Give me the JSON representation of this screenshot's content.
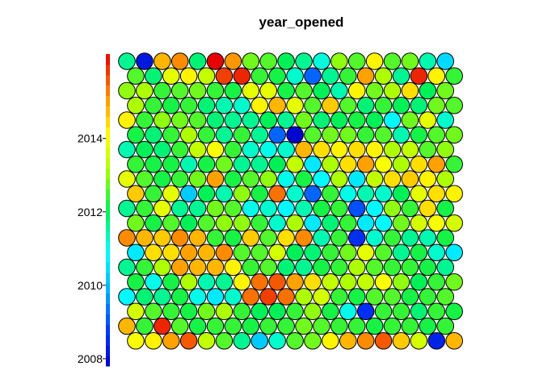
{
  "chart_data": {
    "type": "heatmap",
    "title": "year_opened",
    "grid": false,
    "legend": "colorbar-left",
    "colorbar": {
      "min": 2007.8,
      "max": 2016.3,
      "ticks": [
        2008,
        2010,
        2012,
        2014
      ],
      "tick_labels": [
        "2008",
        "2010",
        "2012",
        "2014"
      ]
    },
    "hex_grid": {
      "columns": 19,
      "layout": "hexagonal",
      "row_order": "top-to-bottom",
      "rows": [
        [
          2011.6,
          2008.2,
          2014.8,
          2015.2,
          2011.8,
          2016.3,
          2015.1,
          2012.8,
          2012.6,
          2012.0,
          2011.6,
          2011.1,
          2013.0,
          2012.6,
          2014.2,
          2012.6,
          2012.8,
          2011.4,
          2010.4
        ],
        [
          2012.6,
          2011.8,
          2013.8,
          2014.2,
          2013.4,
          2015.8,
          2016.0,
          2012.4,
          2012.2,
          2011.2,
          2009.2,
          2011.6,
          2012.4,
          2015.0,
          2013.2,
          2011.6,
          2016.0,
          2014.2,
          2012.4
        ],
        [
          2013.0,
          2013.2,
          2012.4,
          2012.6,
          2012.8,
          2012.4,
          2012.2,
          2013.8,
          2013.8,
          2012.2,
          2012.6,
          2012.0,
          2011.4,
          2014.2,
          2012.8,
          2013.2,
          2014.4,
          2012.0,
          2012.8
        ],
        [
          2013.2,
          2012.4,
          2012.2,
          2012.4,
          2011.8,
          2011.4,
          2011.2,
          2014.2,
          2014.8,
          2013.8,
          2012.6,
          2014.6,
          2012.6,
          2011.8,
          2012.4,
          2012.0,
          2011.8,
          2012.8,
          2012.6
        ],
        [
          2014.2,
          2012.4,
          2013.0,
          2012.8,
          2012.6,
          2011.8,
          2011.6,
          2011.6,
          2012.0,
          2011.6,
          2012.8,
          2011.8,
          2012.0,
          2012.2,
          2012.0,
          2010.8,
          2012.8,
          2013.8,
          2011.2
        ],
        [
          2012.2,
          2011.8,
          2012.4,
          2013.2,
          2012.4,
          2011.6,
          2012.4,
          2011.6,
          2009.2,
          2007.9,
          2012.6,
          2012.8,
          2012.8,
          2012.4,
          2012.6,
          2011.4,
          2012.2,
          2012.6,
          2012.8
        ],
        [
          2011.4,
          2012.0,
          2011.8,
          2012.4,
          2013.4,
          2014.0,
          2012.4,
          2011.2,
          2011.0,
          2011.2,
          2014.8,
          2014.4,
          2014.2,
          2014.4,
          2014.2,
          2013.2,
          2013.4,
          2012.6,
          2013.0
        ],
        [
          2012.4,
          2012.2,
          2012.2,
          2011.4,
          2012.2,
          2012.8,
          2011.6,
          2011.6,
          2012.0,
          2013.4,
          2010.6,
          2013.2,
          2014.4,
          2015.0,
          2014.0,
          2013.2,
          2014.4,
          2015.0,
          2012.4
        ],
        [
          2013.8,
          2012.6,
          2012.2,
          2012.4,
          2012.8,
          2015.0,
          2012.2,
          2012.6,
          2013.0,
          2011.0,
          2012.2,
          2010.8,
          2013.2,
          2010.6,
          2013.4,
          2014.4,
          2014.6,
          2014.2,
          2013.2
        ],
        [
          2014.6,
          2012.4,
          2013.8,
          2010.2,
          2012.0,
          2011.4,
          2013.0,
          2012.2,
          2015.4,
          2011.2,
          2009.2,
          2012.4,
          2011.0,
          2011.4,
          2011.2,
          2012.0,
          2013.8,
          2014.4,
          2014.2
        ],
        [
          2011.6,
          2012.4,
          2013.8,
          2011.6,
          2011.6,
          2012.8,
          2012.6,
          2011.0,
          2011.2,
          2010.8,
          2011.4,
          2012.2,
          2012.4,
          2009.0,
          2010.8,
          2013.0,
          2012.4,
          2014.4,
          2012.2
        ],
        [
          2012.8,
          2012.2,
          2012.6,
          2012.0,
          2012.6,
          2013.0,
          2013.0,
          2012.4,
          2011.2,
          2013.2,
          2010.6,
          2011.8,
          2012.4,
          2010.6,
          2010.8,
          2012.8,
          2013.6,
          2014.0,
          2013.6
        ],
        [
          2015.2,
          2014.8,
          2014.6,
          2015.2,
          2014.8,
          2012.4,
          2012.2,
          2014.6,
          2012.6,
          2014.4,
          2015.2,
          2011.4,
          2012.4,
          2008.6,
          2011.2,
          2012.4,
          2011.6,
          2011.4,
          2012.2
        ],
        [
          2010.6,
          2014.4,
          2014.4,
          2015.0,
          2014.8,
          2015.2,
          2012.6,
          2012.6,
          2013.6,
          2012.0,
          2011.8,
          2012.4,
          2012.8,
          2013.8,
          2012.6,
          2011.6,
          2012.2,
          2011.2,
          2010.6
        ],
        [
          2011.6,
          2012.4,
          2013.2,
          2015.0,
          2014.8,
          2014.8,
          2014.2,
          2012.4,
          2012.6,
          2011.8,
          2011.6,
          2012.2,
          2012.4,
          2013.2,
          2012.6,
          2012.4,
          2012.4,
          2012.2,
          2011.6
        ],
        [
          2012.2,
          2011.0,
          2012.2,
          2013.2,
          2011.4,
          2011.6,
          2014.2,
          2015.4,
          2015.6,
          2015.0,
          2014.4,
          2013.4,
          2013.2,
          2013.4,
          2014.0,
          2013.0,
          2012.0,
          2012.4,
          2012.8
        ],
        [
          2010.8,
          2011.8,
          2011.6,
          2012.2,
          2011.0,
          2010.6,
          2011.2,
          2015.4,
          2015.8,
          2015.4,
          2013.2,
          2013.6,
          2012.4,
          2012.2,
          2012.6,
          2012.6,
          2012.2,
          2012.4,
          2012.6
        ],
        [
          2013.6,
          2012.6,
          2012.4,
          2012.2,
          2012.8,
          2013.2,
          2012.4,
          2012.0,
          2012.0,
          2012.4,
          2013.0,
          2012.2,
          2011.0,
          2008.6,
          2012.4,
          2012.4,
          2011.8,
          2012.4,
          2012.2
        ],
        [
          2014.8,
          2012.4,
          2016.0,
          2012.6,
          2012.2,
          2012.4,
          2012.4,
          2012.2,
          2012.4,
          2012.4,
          2012.8,
          2012.6,
          2012.4,
          2012.4,
          2012.2,
          2012.4,
          2012.4,
          2012.2,
          2012.4
        ],
        [
          2014.0,
          2014.2,
          2015.0,
          2015.6,
          2013.4,
          2012.6,
          2011.6,
          2010.2,
          2011.2,
          2012.6,
          2012.8,
          2014.2,
          2014.8,
          2015.2,
          2015.6,
          2014.6,
          2013.6,
          2008.4,
          2014.8
        ]
      ]
    }
  }
}
